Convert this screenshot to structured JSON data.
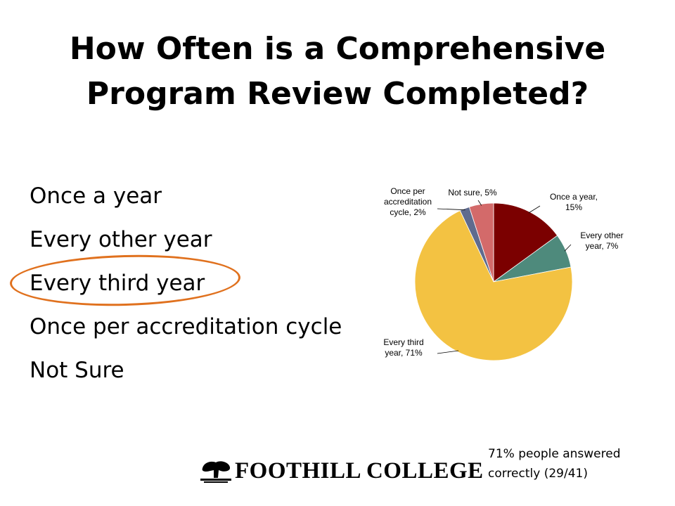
{
  "slide": {
    "title_lines": [
      "How Often is a Comprehensive",
      "Program Review Completed?"
    ],
    "options": [
      "Once a year",
      "Every other year",
      "Every third year",
      "Once per accreditation cycle",
      "Not Sure"
    ],
    "highlighted_option": "Every third year",
    "highlight_color": "#e0711e",
    "logo_text": "FOOTHILL COLLEGE",
    "logo_icon": "tree-icon",
    "note_lines": [
      "71% people answered",
      "correctly (29/41)"
    ]
  },
  "chart_data": {
    "type": "pie",
    "title": "",
    "start_angle_deg": 0,
    "direction": "clockwise",
    "slices": [
      {
        "label_lines": [
          "Once a year,",
          "15%"
        ],
        "category": "Once a year",
        "value": 15,
        "color": "#7b0000"
      },
      {
        "label_lines": [
          "Every other",
          "year, 7%"
        ],
        "category": "Every other year",
        "value": 7,
        "color": "#4e8a7c"
      },
      {
        "label_lines": [
          "Every third",
          "year, 71%"
        ],
        "category": "Every third year",
        "value": 71,
        "color": "#f3c242"
      },
      {
        "label_lines": [
          "Once per",
          "accreditation",
          "cycle, 2%"
        ],
        "category": "Once per accreditation cycle",
        "value": 2,
        "color": "#5f6b8e"
      },
      {
        "label_lines": [
          "Not sure, 5%"
        ],
        "category": "Not sure",
        "value": 5,
        "color": "#d36a6a"
      }
    ]
  }
}
